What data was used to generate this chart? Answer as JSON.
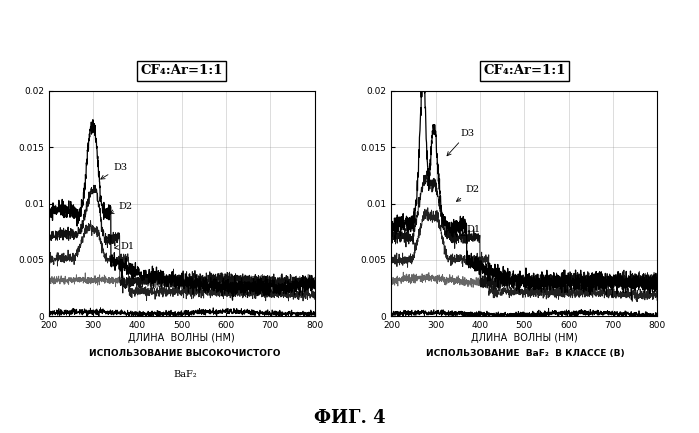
{
  "title_left": "CF₄:Ar=1:1",
  "title_right": "CF₄:Ar=1:1",
  "xlabel": "ДЛИНА  ВОЛНЫ (НМ)",
  "caption_left1": "ИСПОЛЬЗОВАНИЕ ВЫСОКОЧИСТОГО",
  "caption_left2": "BaF₂",
  "caption_right1": "ИСПОЛЬЗОВАНИЕ  BaF₂  В КЛАССЕ (В)",
  "fig_caption": "ФИГ. 4",
  "ylim": [
    0,
    0.02
  ],
  "xlim": [
    200,
    800
  ],
  "yticks": [
    0,
    0.005,
    0.01,
    0.015,
    0.02
  ],
  "xticks": [
    200,
    300,
    400,
    500,
    600,
    700,
    800
  ],
  "background_color": "#ffffff",
  "grid_color": "#888888"
}
